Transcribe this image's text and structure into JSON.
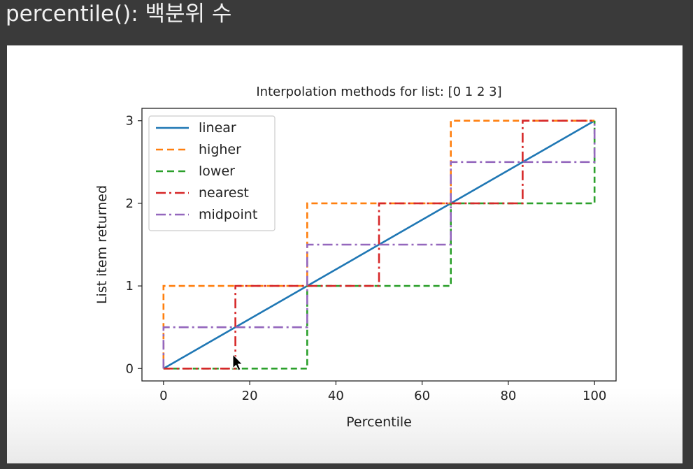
{
  "slide": {
    "title": "percentile(): 백분위 수"
  },
  "colors": {
    "linear": "#1f77b4",
    "higher": "#ff7f0e",
    "lower": "#2ca02c",
    "nearest": "#d62728",
    "midpoint": "#9467bd"
  },
  "chart_data": {
    "type": "line",
    "title": "Interpolation methods for list: [0 1 2 3]",
    "xlabel": "Percentile",
    "ylabel": "List item returned",
    "xlim": [
      -5,
      105
    ],
    "ylim": [
      -0.15,
      3.15
    ],
    "xticks": [
      0,
      20,
      40,
      60,
      80,
      100
    ],
    "xtick_labels": [
      "0",
      "20",
      "40",
      "60",
      "80",
      "100"
    ],
    "yticks": [
      0,
      1,
      2,
      3
    ],
    "ytick_labels": [
      "0",
      "1",
      "2",
      "3"
    ],
    "grid": false,
    "legend_position": "upper-left",
    "series": [
      {
        "name": "linear",
        "style": "solid",
        "x": [
          0,
          100
        ],
        "y": [
          0,
          3
        ]
      },
      {
        "name": "higher",
        "style": "dashed",
        "x": [
          0,
          0,
          33.33,
          33.33,
          66.67,
          66.67,
          100
        ],
        "y": [
          0,
          1,
          1,
          2,
          2,
          3,
          3
        ]
      },
      {
        "name": "lower",
        "style": "dashed",
        "x": [
          0,
          33.33,
          33.33,
          66.67,
          66.67,
          100,
          100
        ],
        "y": [
          0,
          0,
          1,
          1,
          2,
          2,
          3
        ]
      },
      {
        "name": "nearest",
        "style": "dashdot",
        "x": [
          0,
          16.67,
          16.67,
          50,
          50,
          83.33,
          83.33,
          100
        ],
        "y": [
          0,
          0,
          1,
          1,
          2,
          2,
          3,
          3
        ]
      },
      {
        "name": "midpoint",
        "style": "dashdot",
        "x": [
          0,
          0,
          33.33,
          33.33,
          66.67,
          66.67,
          100,
          100
        ],
        "y": [
          0,
          0.5,
          0.5,
          1.5,
          1.5,
          2.5,
          2.5,
          3
        ]
      }
    ]
  }
}
